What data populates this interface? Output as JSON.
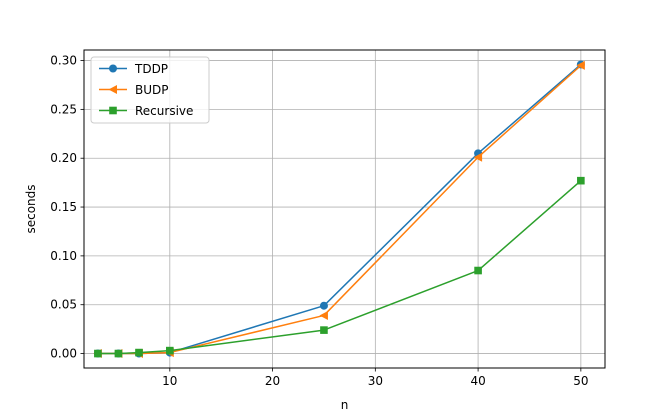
{
  "chart_data": {
    "type": "line",
    "xlabel": "n",
    "ylabel": "seconds",
    "xlim": [
      1.65,
      52.35
    ],
    "ylim": [
      -0.0148,
      0.3108
    ],
    "xticks": [
      10,
      20,
      30,
      40,
      50
    ],
    "xtick_labels": [
      "10",
      "20",
      "30",
      "40",
      "50"
    ],
    "yticks": [
      0.0,
      0.05,
      0.1,
      0.15,
      0.2,
      0.25,
      0.3
    ],
    "ytick_labels": [
      "0.00",
      "0.05",
      "0.10",
      "0.15",
      "0.20",
      "0.25",
      "0.30"
    ],
    "grid": true,
    "legend_position": "upper-left",
    "series": [
      {
        "name": "TDDP",
        "color": "#1f77b4",
        "marker": "circle",
        "x": [
          3,
          5,
          7,
          10,
          25,
          40,
          50
        ],
        "y": [
          0.0,
          0.0,
          0.0,
          0.001,
          0.049,
          0.205,
          0.296
        ]
      },
      {
        "name": "BUDP",
        "color": "#ff7f0e",
        "marker": "triangle-left",
        "x": [
          3,
          5,
          7,
          10,
          25,
          40,
          50
        ],
        "y": [
          0.0,
          0.0,
          0.0,
          0.001,
          0.039,
          0.201,
          0.295
        ]
      },
      {
        "name": "Recursive",
        "color": "#2ca02c",
        "marker": "square",
        "x": [
          3,
          5,
          7,
          10,
          25,
          40,
          50
        ],
        "y": [
          0.0,
          0.0,
          0.001,
          0.003,
          0.024,
          0.085,
          0.177
        ]
      }
    ]
  }
}
